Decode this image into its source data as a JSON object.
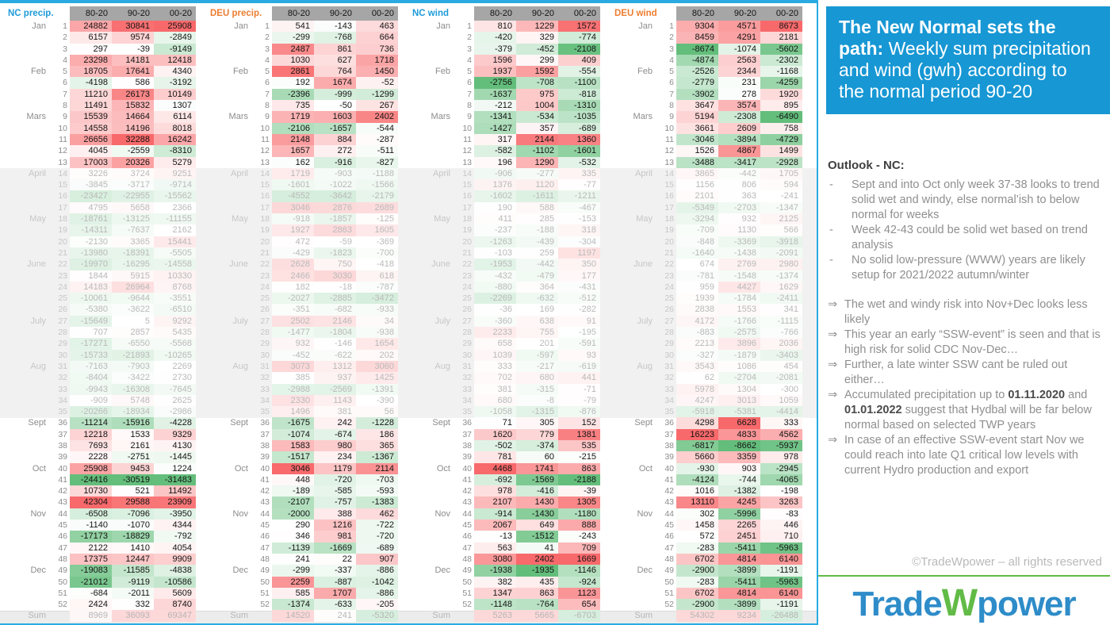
{
  "sidebar": {
    "title_bold": "The New Normal sets the path:",
    "title_rest": " Weekly sum precipitation and wind (gwh) according to the normal period 90-20",
    "outlook_heading": "Outlook - NC:",
    "dash_glyph": "-",
    "arrow_glyph": "⇒",
    "bullets": [
      "Sept and into Oct only week 37-38 looks to trend solid wet and windy, else normal’ish to below normal for weeks",
      "Week 42-43 could be solid wet based on trend analysis",
      "No solid low-pressure (WWW) years are likely setup for 2021/2022 autumn/winter"
    ],
    "arrows": [
      {
        "segments": [
          {
            "text": "The wet and windy risk into Nov+Dec looks less likely",
            "bold": false
          }
        ]
      },
      {
        "segments": [
          {
            "text": "This year an early “SSW-event” is seen and that is high risk for solid CDC Nov-Dec…",
            "bold": false
          }
        ]
      },
      {
        "segments": [
          {
            "text": "Further, a late winter SSW cant be ruled out either…",
            "bold": false
          }
        ]
      },
      {
        "segments": [
          {
            "text": "Accumulated precipitation up to ",
            "bold": false
          },
          {
            "text": "01.11.2020",
            "bold": true
          },
          {
            "text": " and ",
            "bold": false
          },
          {
            "text": "01.01.2022",
            "bold": true
          },
          {
            "text": " suggest that Hydbal will be far below normal based on selected TWP years",
            "bold": false
          }
        ]
      },
      {
        "segments": [
          {
            "text": "In case of an effective SSW-event start Nov we could reach into late Q1 critical low levels with current Hydro production and export",
            "bold": false
          }
        ]
      }
    ],
    "copyright": "©TradeWpower – all rights reserved",
    "logo": {
      "part1": "Trade",
      "part2": "W",
      "part3": "power"
    }
  },
  "colors": {
    "accent_blue": "#1797d4",
    "frame_blue": "#29abe2",
    "brand_green": "#62bb46",
    "nc_label_blue": "#1e9bd7",
    "deu_label_orange": "#ed7d31",
    "scale_red": "#f8696b",
    "scale_green": "#63be7b"
  },
  "table": {
    "columns": [
      "80-20",
      "90-20",
      "00-20"
    ],
    "sum_label": "Sum",
    "faded_from": 14,
    "faded_to": 35,
    "months": {
      "1": "Jan",
      "5": "Feb",
      "9": "Mars",
      "14": "April",
      "18": "May",
      "22": "June",
      "27": "July",
      "31": "Aug",
      "36": "Sept",
      "40": "Oct",
      "44": "Nov",
      "49": "Dec"
    },
    "groups": [
      {
        "id": "nc-precip",
        "label": "NC precip.",
        "label_color": "#1e9bd7",
        "rows": [
          [
            24882,
            30841,
            25908
          ],
          [
            6157,
            9574,
            -2849
          ],
          [
            297,
            -39,
            -9149
          ],
          [
            23298,
            14181,
            12418
          ],
          [
            18705,
            17641,
            4340
          ],
          [
            -4198,
            586,
            -3192
          ],
          [
            11210,
            26173,
            10149
          ],
          [
            11491,
            15832,
            1307
          ],
          [
            15539,
            14664,
            6114
          ],
          [
            14558,
            14196,
            8018
          ],
          [
            26656,
            32288,
            16242
          ],
          [
            4045,
            -2559,
            -8310
          ],
          [
            17003,
            20326,
            5279
          ],
          [
            3226,
            3724,
            9251
          ],
          [
            -3845,
            -3717,
            -9714
          ],
          [
            -23427,
            -22955,
            -15562
          ],
          [
            4795,
            5658,
            2366
          ],
          [
            -18761,
            -13125,
            -11155
          ],
          [
            -14311,
            -7637,
            2162
          ],
          [
            -2130,
            3365,
            15441
          ],
          [
            -13980,
            -18391,
            -5505
          ],
          [
            -19970,
            -16295,
            -14558
          ],
          [
            1844,
            5915,
            10330
          ],
          [
            14183,
            26964,
            8768
          ],
          [
            -10061,
            -9644,
            -3551
          ],
          [
            -5380,
            -3622,
            -6510
          ],
          [
            -15649,
            5,
            9292
          ],
          [
            707,
            2857,
            5435
          ],
          [
            -17271,
            -6550,
            -5568
          ],
          [
            -15733,
            -21893,
            -10265
          ],
          [
            -7163,
            -7903,
            2269
          ],
          [
            -8404,
            -3422,
            2730
          ],
          [
            -9943,
            -16308,
            -7645
          ],
          [
            -909,
            5748,
            2625
          ],
          [
            -20266,
            -18934,
            -2986
          ],
          [
            -11214,
            -15916,
            -4228
          ],
          [
            12218,
            1533,
            9329
          ],
          [
            7693,
            2161,
            4130
          ],
          [
            2228,
            -2751,
            -1445
          ],
          [
            25908,
            9453,
            1224
          ],
          [
            -24416,
            -30519,
            -31483
          ],
          [
            10730,
            521,
            11492
          ],
          [
            42304,
            29588,
            23909
          ],
          [
            -6508,
            -7096,
            -3950
          ],
          [
            -1140,
            -1070,
            4344
          ],
          [
            -17173,
            -18829,
            -792
          ],
          [
            2122,
            1410,
            4054
          ],
          [
            17375,
            12447,
            9909
          ],
          [
            -19083,
            -11585,
            -4838
          ],
          [
            -21012,
            -9119,
            -10586
          ],
          [
            -684,
            -2011,
            5609
          ],
          [
            2424,
            332,
            8740
          ]
        ],
        "sum": [
          8969,
          36093,
          69347
        ]
      },
      {
        "id": "deu-precip",
        "label": "DEU precip.",
        "label_color": "#ed7d31",
        "rows": [
          [
            541,
            -143,
            463
          ],
          [
            -299,
            -768,
            664
          ],
          [
            2487,
            861,
            736
          ],
          [
            1030,
            627,
            1718
          ],
          [
            2861,
            764,
            1450
          ],
          [
            192,
            1674,
            -52
          ],
          [
            -2396,
            -999,
            -1299
          ],
          [
            735,
            -50,
            267
          ],
          [
            1719,
            1603,
            2402
          ],
          [
            -2106,
            -1657,
            -544
          ],
          [
            2148,
            884,
            -287
          ],
          [
            1657,
            272,
            -511
          ],
          [
            162,
            -916,
            -827
          ],
          [
            1719,
            -903,
            -1188
          ],
          [
            -1601,
            -1022,
            -1566
          ],
          [
            -4552,
            -3642,
            -2179
          ],
          [
            3046,
            2876,
            2689
          ],
          [
            -918,
            -1857,
            -125
          ],
          [
            1927,
            2863,
            1605
          ],
          [
            472,
            -59,
            -369
          ],
          [
            -429,
            -1823,
            -700
          ],
          [
            2628,
            750,
            -418
          ],
          [
            2466,
            3030,
            618
          ],
          [
            182,
            -18,
            -787
          ],
          [
            -2027,
            -2885,
            -3472
          ],
          [
            -351,
            -682,
            -933
          ],
          [
            2502,
            2146,
            34
          ],
          [
            -1477,
            -1804,
            -938
          ],
          [
            932,
            -146,
            1654
          ],
          [
            -452,
            -622,
            202
          ],
          [
            3073,
            1312,
            3060
          ],
          [
            385,
            937,
            1425
          ],
          [
            -2988,
            -2569,
            -1391
          ],
          [
            2330,
            1143,
            -390
          ],
          [
            1496,
            381,
            56
          ],
          [
            -1675,
            242,
            -1228
          ],
          [
            -1074,
            -674,
            186
          ],
          [
            1583,
            980,
            365
          ],
          [
            -1517,
            234,
            -1367
          ],
          [
            3046,
            1179,
            2114
          ],
          [
            448,
            -720,
            -703
          ],
          [
            -189,
            -585,
            -593
          ],
          [
            -2107,
            -757,
            -1383
          ],
          [
            -2000,
            388,
            462
          ],
          [
            290,
            1216,
            -722
          ],
          [
            346,
            981,
            -720
          ],
          [
            -1139,
            -1669,
            -689
          ],
          [
            241,
            22,
            907
          ],
          [
            -299,
            -337,
            -886
          ],
          [
            2259,
            -887,
            -1042
          ],
          [
            585,
            1707,
            -886
          ],
          [
            -1374,
            -633,
            -205
          ]
        ],
        "sum": [
          14520,
          241,
          -5320
        ]
      },
      {
        "id": "nc-wind",
        "label": "NC wind",
        "label_color": "#1e9bd7",
        "rows": [
          [
            810,
            1229,
            1572
          ],
          [
            -420,
            329,
            -774
          ],
          [
            -379,
            -452,
            -2108
          ],
          [
            1596,
            299,
            409
          ],
          [
            1937,
            1592,
            -554
          ],
          [
            -2756,
            -708,
            -1100
          ],
          [
            -1637,
            975,
            -818
          ],
          [
            -212,
            1004,
            -1310
          ],
          [
            -1341,
            -534,
            -1035
          ],
          [
            -1427,
            357,
            -689
          ],
          [
            317,
            2144,
            1360
          ],
          [
            -582,
            -1102,
            -1601
          ],
          [
            196,
            1290,
            -532
          ],
          [
            -906,
            -277,
            335
          ],
          [
            1376,
            1120,
            -77
          ],
          [
            -1602,
            -1611,
            -1211
          ],
          [
            190,
            588,
            -467
          ],
          [
            411,
            285,
            -153
          ],
          [
            -237,
            -188,
            318
          ],
          [
            -1263,
            -439,
            -304
          ],
          [
            -103,
            259,
            1197
          ],
          [
            -1953,
            -442,
            350
          ],
          [
            -432,
            -479,
            177
          ],
          [
            -880,
            364,
            -431
          ],
          [
            -2269,
            -632,
            -512
          ],
          [
            -36,
            169,
            -282
          ],
          [
            -360,
            638,
            91
          ],
          [
            2233,
            755,
            -195
          ],
          [
            658,
            201,
            -591
          ],
          [
            1039,
            -597,
            93
          ],
          [
            333,
            -217,
            -619
          ],
          [
            702,
            680,
            441
          ],
          [
            381,
            -315,
            -71
          ],
          [
            680,
            -8,
            -79
          ],
          [
            -1058,
            -1315,
            -876
          ],
          [
            71,
            305,
            152
          ],
          [
            1620,
            779,
            1381
          ],
          [
            -502,
            -374,
            535
          ],
          [
            781,
            60,
            -215
          ],
          [
            4468,
            1741,
            863
          ],
          [
            -692,
            -1569,
            -2188
          ],
          [
            978,
            -416,
            -39
          ],
          [
            2107,
            1430,
            1305
          ],
          [
            -914,
            -1430,
            -1180
          ],
          [
            2067,
            649,
            888
          ],
          [
            -13,
            -1512,
            -243
          ],
          [
            563,
            41,
            709
          ],
          [
            3080,
            2402,
            1669
          ],
          [
            -1938,
            -1935,
            -1146
          ],
          [
            382,
            435,
            -924
          ],
          [
            1347,
            863,
            1123
          ],
          [
            -1148,
            -764,
            654
          ]
        ],
        "sum": [
          5263,
          5665,
          -6703
        ]
      },
      {
        "id": "deu-wind",
        "label": "DEU wind",
        "label_color": "#ed7d31",
        "rows": [
          [
            9304,
            4571,
            8673
          ],
          [
            8459,
            4291,
            2181
          ],
          [
            -8674,
            -1074,
            -5602
          ],
          [
            -4874,
            2563,
            -2302
          ],
          [
            -2526,
            2344,
            -1168
          ],
          [
            -2779,
            231,
            -4259
          ],
          [
            -3902,
            278,
            1920
          ],
          [
            3647,
            3574,
            895
          ],
          [
            5194,
            -2308,
            -6490
          ],
          [
            3661,
            2609,
            758
          ],
          [
            -3046,
            -3894,
            -4729
          ],
          [
            1526,
            4867,
            1499
          ],
          [
            -3488,
            -3417,
            -2928
          ],
          [
            3865,
            -442,
            1705
          ],
          [
            1156,
            806,
            594
          ],
          [
            2101,
            363,
            -241
          ],
          [
            -5349,
            -2703,
            -1347
          ],
          [
            -3294,
            932,
            2125
          ],
          [
            -709,
            1130,
            566
          ],
          [
            -848,
            -3369,
            -3918
          ],
          [
            -1640,
            -1438,
            -2091
          ],
          [
            674,
            2769,
            2980
          ],
          [
            -781,
            -1548,
            -1374
          ],
          [
            959,
            4427,
            1629
          ],
          [
            1939,
            -1784,
            -2411
          ],
          [
            2838,
            1553,
            341
          ],
          [
            4172,
            -1766,
            -1115
          ],
          [
            -883,
            -2575,
            -766
          ],
          [
            2213,
            3896,
            2036
          ],
          [
            -327,
            -1879,
            -3403
          ],
          [
            3543,
            1086,
            454
          ],
          [
            62,
            -2704,
            -2081
          ],
          [
            5978,
            1304,
            -300
          ],
          [
            4247,
            3013,
            1059
          ],
          [
            -5918,
            -5381,
            -4414
          ],
          [
            4298,
            6628,
            333
          ],
          [
            16223,
            4833,
            4562
          ],
          [
            -6817,
            -8662,
            -5937
          ],
          [
            5660,
            3359,
            978
          ],
          [
            -930,
            903,
            -2945
          ],
          [
            -4124,
            -744,
            -4065
          ],
          [
            1016,
            -1382,
            -198
          ],
          [
            13110,
            4245,
            3263
          ],
          [
            302,
            -5996,
            -83
          ],
          [
            1458,
            2265,
            446
          ],
          [
            572,
            2451,
            710
          ],
          [
            -283,
            -5411,
            -5963
          ],
          [
            6702,
            4814,
            6140
          ],
          [
            -2900,
            -3899,
            -1191
          ],
          [
            -283,
            -5411,
            -5963
          ],
          [
            6702,
            4814,
            6140
          ],
          [
            -2900,
            -3899,
            -1191
          ]
        ],
        "sum": [
          54302,
          9234,
          -26488
        ]
      }
    ]
  }
}
